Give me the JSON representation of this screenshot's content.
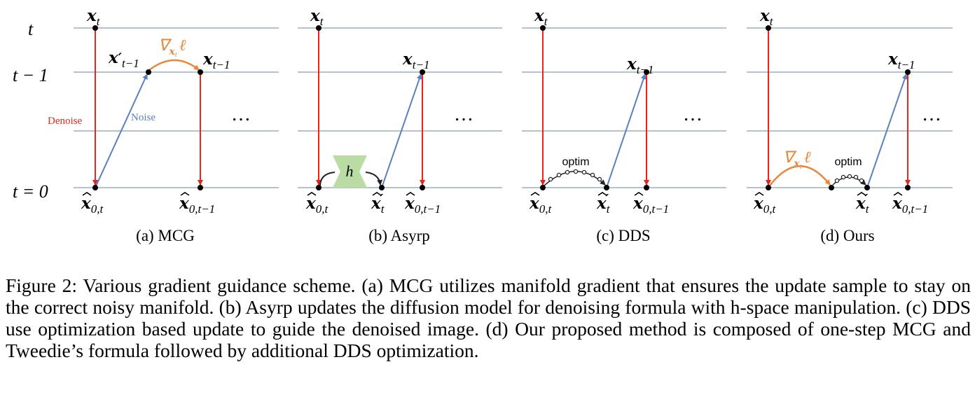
{
  "figure": {
    "row_labels": {
      "t": "t",
      "t_minus_1": "t − 1",
      "t_zero": "t = 0"
    },
    "annotations": {
      "denoise": "Denoise",
      "noise": "Noise",
      "optim": "optim",
      "h": "h",
      "ellipsis": "…"
    },
    "symbols": {
      "x": "x",
      "sub_t": "t",
      "sub_t_minus_1": "t−1",
      "prime": "′",
      "sub_0t": "0,t",
      "sub_0t_minus_1": "0,t−1",
      "nabla": "∇",
      "ell": "ℓ"
    },
    "panels": [
      {
        "label": "(a) MCG"
      },
      {
        "label": "(b) Asyrp"
      },
      {
        "label": "(c) DDS"
      },
      {
        "label": "(d) Ours"
      }
    ],
    "colors": {
      "grid": "#8c9db0",
      "denoise": "#e3261f",
      "noise": "#5b7fc0",
      "gradient": "#e8873a",
      "h_block": "#b9dca5"
    }
  },
  "caption": "Figure 2: Various gradient guidance scheme. (a) MCG utilizes manifold gradient that ensures the update sample to stay on the correct noisy manifold. (b) Asyrp updates the diffusion model for denoising formula with h-space manipulation. (c) DDS use optimization based update to guide the denoised image. (d) Our proposed method is composed of one-step MCG and Tweedie’s formula followed by additional DDS optimization."
}
